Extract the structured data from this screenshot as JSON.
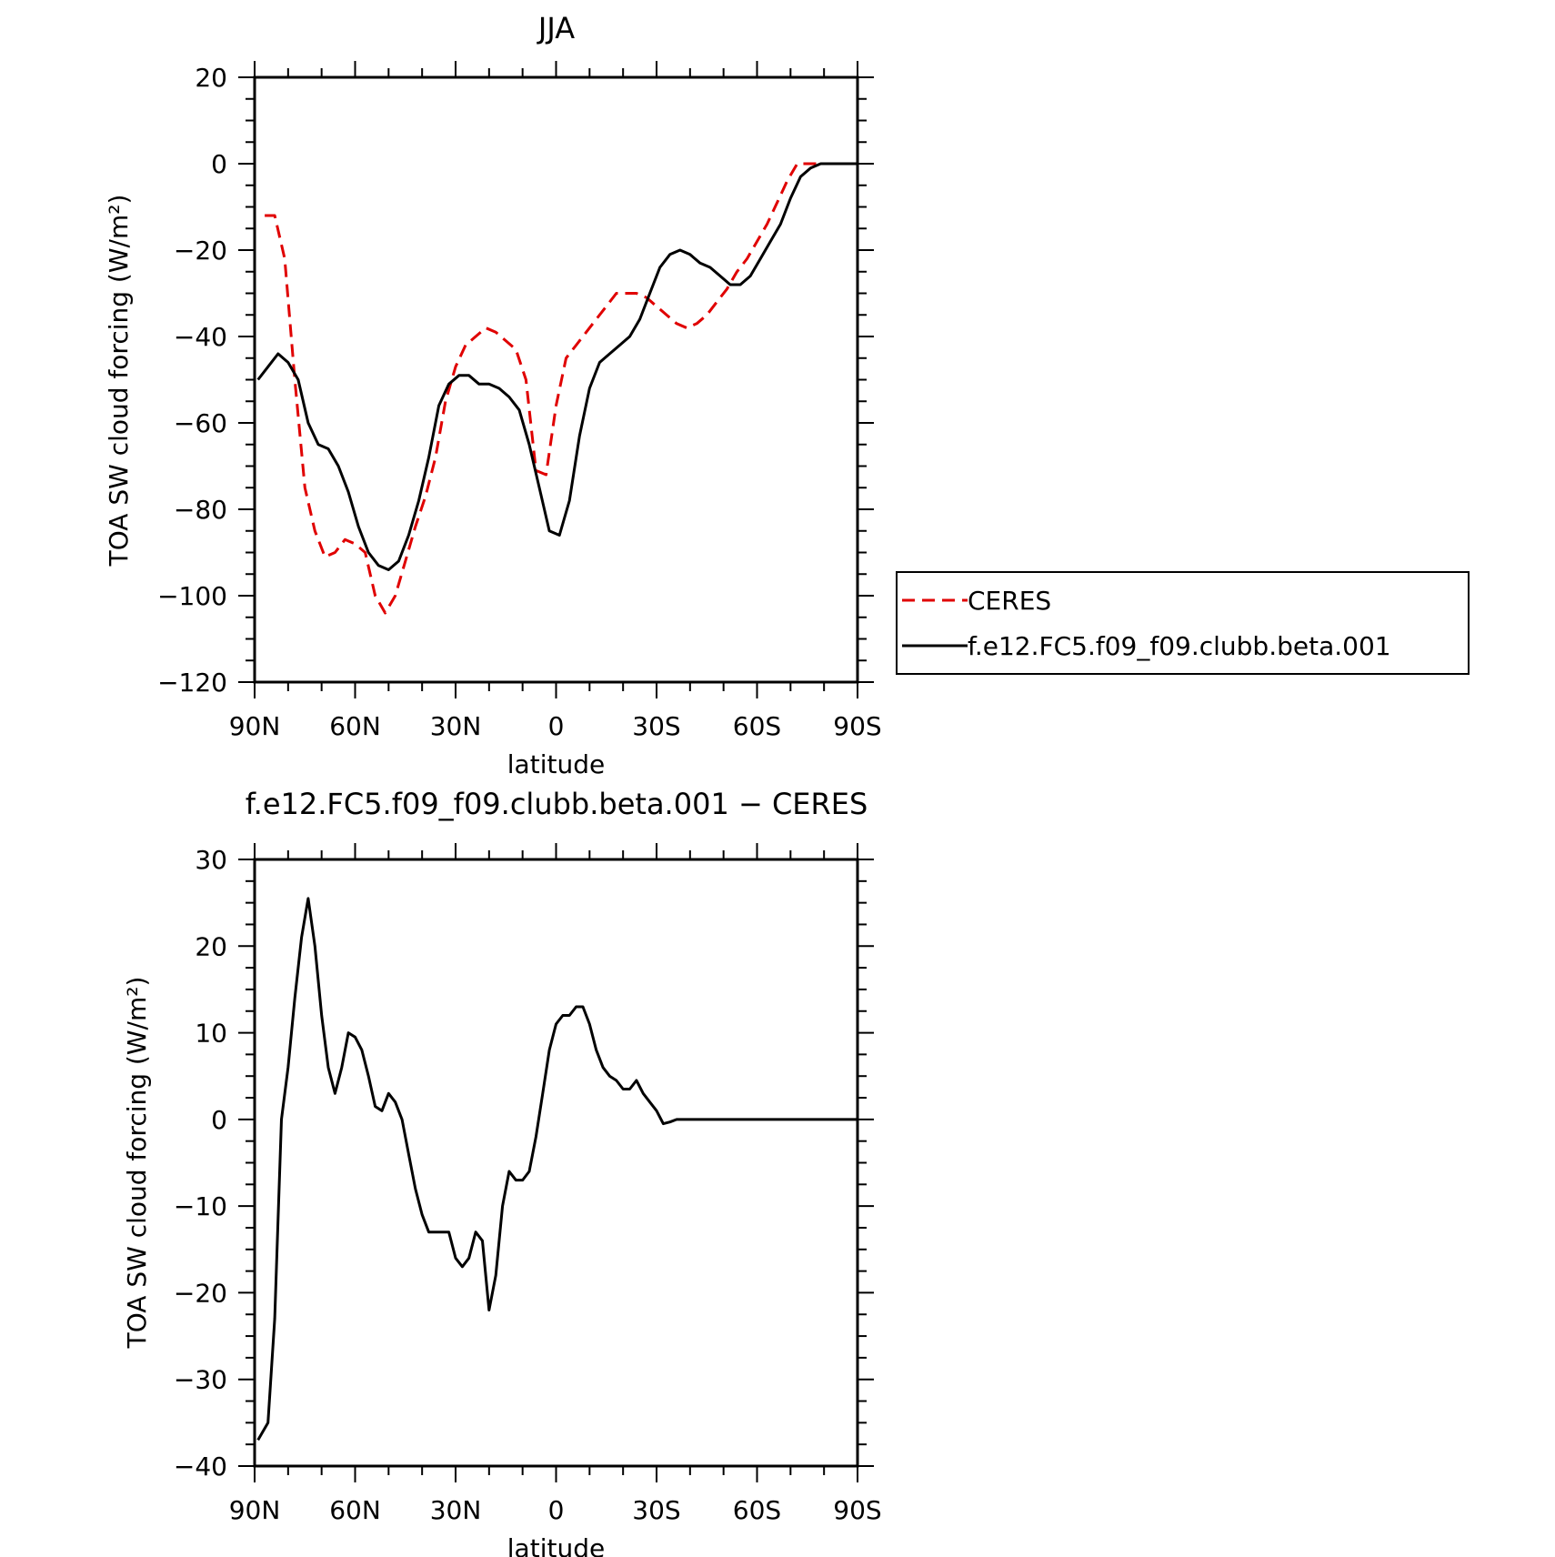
{
  "chart_data": [
    {
      "type": "line",
      "title": "JJA",
      "xlabel": "latitude",
      "ylabel": "TOA SW cloud forcing (W/m²)",
      "xlim": [
        90,
        -90
      ],
      "ylim": [
        -120,
        20
      ],
      "xticks": [
        90,
        60,
        30,
        0,
        -30,
        -60,
        -90
      ],
      "xticklabels": [
        "90N",
        "60N",
        "30N",
        "0",
        "30S",
        "60S",
        "90S"
      ],
      "yticks": [
        20,
        0,
        -20,
        -40,
        -60,
        -80,
        -100,
        -120
      ],
      "yticklabels": [
        "20",
        "0",
        "−20",
        "−40",
        "−60",
        "−80",
        "−100",
        "−120"
      ],
      "legend_position": "right",
      "series": [
        {
          "name": "CERES",
          "color": "#e00000",
          "dash": "dashed",
          "x": [
            87,
            84,
            81,
            78,
            75,
            72,
            69,
            66,
            63,
            60,
            57,
            54,
            51,
            48,
            45,
            42,
            39,
            36,
            33,
            30,
            27,
            24,
            21,
            18,
            15,
            12,
            9,
            6,
            3,
            0,
            -3,
            -6,
            -9,
            -12,
            -15,
            -18,
            -21,
            -24,
            -27,
            -30,
            -33,
            -36,
            -39,
            -42,
            -45,
            -48,
            -51,
            -54,
            -57,
            -60,
            -63,
            -66,
            -69,
            -72,
            -75,
            -78,
            -81,
            -84,
            -87,
            -90
          ],
          "values": [
            -12,
            -12,
            -22,
            -50,
            -75,
            -85,
            -91,
            -90,
            -87,
            -88,
            -90,
            -100,
            -104,
            -100,
            -92,
            -84,
            -77,
            -68,
            -55,
            -47,
            -42,
            -40,
            -38,
            -39,
            -41,
            -43,
            -50,
            -71,
            -72,
            -56,
            -45,
            -42,
            -39,
            -36,
            -33,
            -30,
            -30,
            -30,
            -31,
            -33,
            -35,
            -37,
            -38,
            -37,
            -35,
            -32,
            -29,
            -25,
            -22,
            -18,
            -14,
            -9,
            -4,
            0,
            0,
            0,
            0,
            0,
            0,
            0
          ]
        },
        {
          "name": "f.e12.FC5.f09_f09.clubb.beta.001",
          "color": "#000000",
          "dash": "solid",
          "x": [
            89,
            86,
            83,
            80,
            77,
            74,
            71,
            68,
            65,
            62,
            59,
            56,
            53,
            50,
            47,
            44,
            41,
            38,
            35,
            32,
            29,
            26,
            23,
            20,
            17,
            14,
            11,
            8,
            5,
            2,
            -1,
            -4,
            -7,
            -10,
            -13,
            -16,
            -19,
            -22,
            -25,
            -28,
            -31,
            -34,
            -37,
            -40,
            -43,
            -46,
            -49,
            -52,
            -55,
            -58,
            -61,
            -64,
            -67,
            -70,
            -73,
            -76,
            -79,
            -82,
            -85,
            -88,
            -90
          ],
          "values": [
            -50,
            -47,
            -44,
            -46,
            -50,
            -60,
            -65,
            -66,
            -70,
            -76,
            -84,
            -90,
            -93,
            -94,
            -92,
            -86,
            -78,
            -68,
            -56,
            -51,
            -49,
            -49,
            -51,
            -51,
            -52,
            -54,
            -57,
            -65,
            -75,
            -85,
            -86,
            -78,
            -63,
            -52,
            -46,
            -44,
            -42,
            -40,
            -36,
            -30,
            -24,
            -21,
            -20,
            -21,
            -23,
            -24,
            -26,
            -28,
            -28,
            -26,
            -22,
            -18,
            -14,
            -8,
            -3,
            -1,
            0,
            0,
            0,
            0,
            0
          ]
        }
      ]
    },
    {
      "type": "line",
      "title": "f.e12.FC5.f09_f09.clubb.beta.001 − CERES",
      "xlabel": "latitude",
      "ylabel": "TOA SW cloud forcing (W/m²)",
      "xlim": [
        90,
        -90
      ],
      "ylim": [
        -40,
        30
      ],
      "xticks": [
        90,
        60,
        30,
        0,
        -30,
        -60,
        -90
      ],
      "xticklabels": [
        "90N",
        "60N",
        "30N",
        "0",
        "30S",
        "60S",
        "90S"
      ],
      "yticks": [
        30,
        20,
        10,
        0,
        -10,
        -20,
        -30,
        -40
      ],
      "yticklabels": [
        "30",
        "20",
        "10",
        "0",
        "−10",
        "−20",
        "−30",
        "−40"
      ],
      "series": [
        {
          "color": "#000000",
          "dash": "solid",
          "x": [
            89,
            86,
            84,
            82,
            80,
            78,
            76,
            74,
            72,
            70,
            68,
            66,
            64,
            62,
            60,
            58,
            56,
            54,
            52,
            50,
            48,
            46,
            44,
            42,
            40,
            38,
            36,
            34,
            32,
            30,
            28,
            26,
            24,
            22,
            20,
            18,
            16,
            14,
            12,
            10,
            8,
            6,
            4,
            2,
            0,
            -2,
            -4,
            -6,
            -8,
            -10,
            -12,
            -14,
            -16,
            -18,
            -20,
            -22,
            -24,
            -26,
            -28,
            -30,
            -32,
            -34,
            -36,
            -38,
            -40,
            -42,
            -44,
            -46,
            -48,
            -50,
            -52,
            -54,
            -56,
            -58,
            -60,
            -62,
            -64,
            -66,
            -68,
            -70,
            -72,
            -74,
            -76,
            -78,
            -80,
            -82,
            -84,
            -86,
            -88,
            -90
          ],
          "values": [
            -37,
            -35,
            -23,
            0,
            6,
            14,
            21,
            25.5,
            20,
            12,
            6,
            3,
            6,
            10,
            9.5,
            8,
            5,
            1.5,
            1,
            3,
            2,
            0,
            -4,
            -8,
            -11,
            -13,
            -13,
            -13,
            -13,
            -16,
            -17,
            -16,
            -13,
            -14,
            -22,
            -18,
            -10,
            -6,
            -7,
            -7,
            -6,
            -2,
            3,
            8,
            11,
            12,
            12,
            13,
            13,
            11,
            8,
            6,
            5,
            4.5,
            3.5,
            3.5,
            4.5,
            3,
            2,
            1,
            -0.5,
            -0.3,
            0,
            0,
            0,
            0,
            0,
            0,
            0,
            0,
            0,
            0,
            0,
            0,
            0,
            0,
            0,
            0,
            0,
            0,
            0,
            0,
            0,
            0,
            0,
            0,
            0,
            0,
            0,
            0
          ]
        }
      ]
    }
  ]
}
